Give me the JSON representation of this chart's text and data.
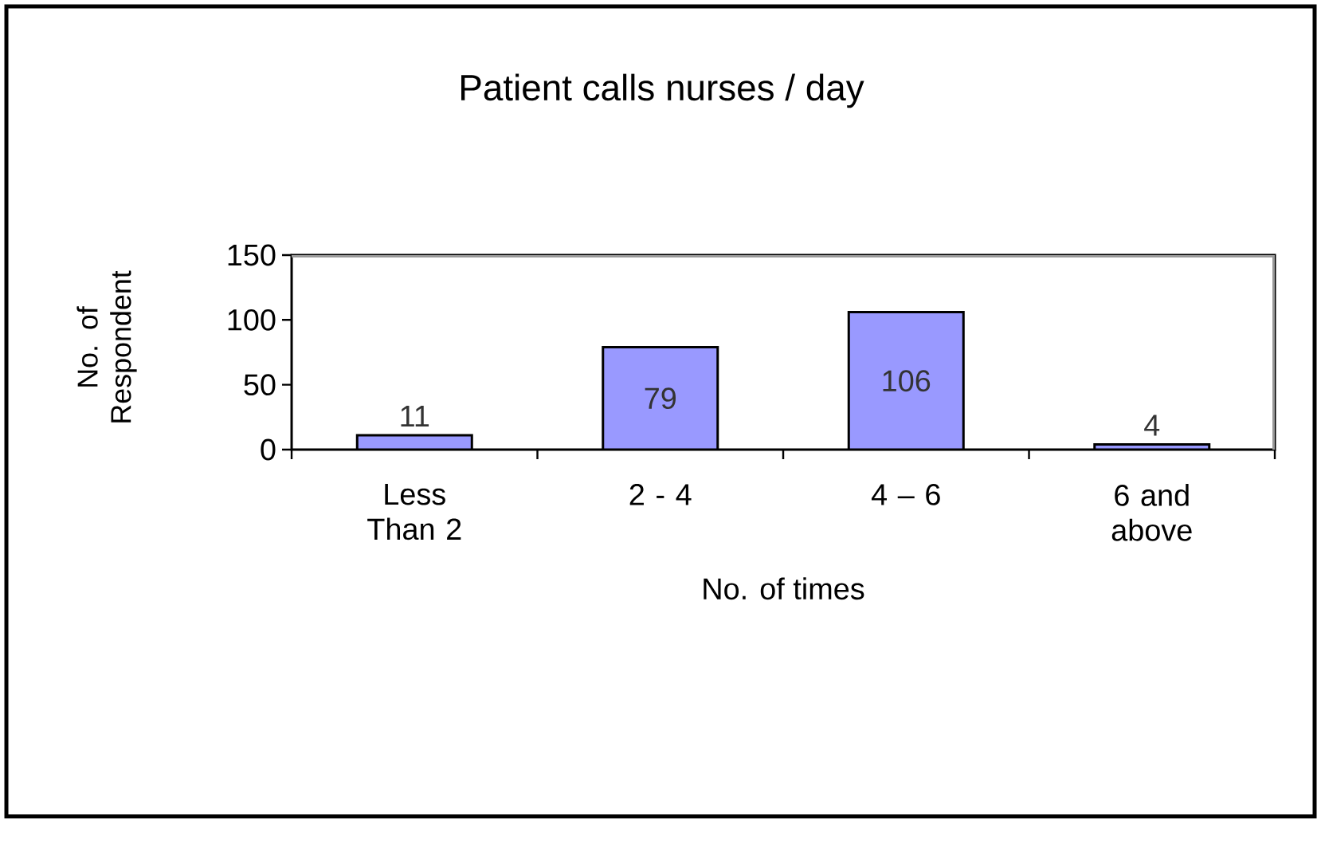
{
  "chart_data": {
    "type": "bar",
    "title": "Patient calls nurses / day",
    "xlabel": "No. of times",
    "ylabel": "No. of Respondent",
    "categories": [
      "Less Than 2",
      "2 - 4",
      "4 – 6",
      "6 and above"
    ],
    "values": [
      11,
      79,
      106,
      4
    ],
    "color": "#9999ff",
    "ylim": [
      0,
      150
    ],
    "yticks": [
      0,
      50,
      100,
      150
    ],
    "data_labels": true
  }
}
